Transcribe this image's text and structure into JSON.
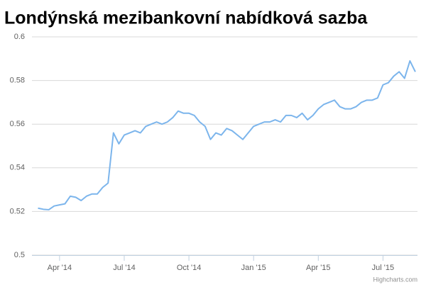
{
  "chart_data": {
    "type": "line",
    "title": "Londýnská mezibankovní nabídková sazba",
    "credits": "Highcharts.com",
    "x": [
      -1,
      -0.75,
      -0.5,
      -0.25,
      0,
      0.25,
      0.5,
      0.75,
      1,
      1.25,
      1.5,
      1.75,
      2,
      2.25,
      2.5,
      2.75,
      3,
      3.25,
      3.5,
      3.75,
      4,
      4.25,
      4.5,
      4.75,
      5,
      5.25,
      5.5,
      5.75,
      6,
      6.25,
      6.5,
      6.75,
      7,
      7.25,
      7.5,
      7.75,
      8,
      8.25,
      8.5,
      8.75,
      9,
      9.25,
      9.5,
      9.75,
      10,
      10.25,
      10.5,
      10.75,
      11,
      11.25,
      11.5,
      11.75,
      12,
      12.25,
      12.5,
      12.75,
      13,
      13.25,
      13.5,
      13.75,
      14,
      14.25,
      14.5,
      14.75,
      15,
      15.25,
      15.5,
      15.75,
      16,
      16.25,
      16.5
    ],
    "series": [
      {
        "color": "#7cb5ec",
        "values": [
          0.5215,
          0.521,
          0.5208,
          0.5225,
          0.523,
          0.5235,
          0.527,
          0.5265,
          0.525,
          0.527,
          0.528,
          0.528,
          0.531,
          0.533,
          0.556,
          0.551,
          0.555,
          0.556,
          0.557,
          0.556,
          0.559,
          0.56,
          0.561,
          0.56,
          0.561,
          0.563,
          0.566,
          0.565,
          0.565,
          0.564,
          0.561,
          0.559,
          0.553,
          0.556,
          0.555,
          0.558,
          0.557,
          0.555,
          0.553,
          0.556,
          0.559,
          0.56,
          0.561,
          0.561,
          0.562,
          0.561,
          0.564,
          0.564,
          0.563,
          0.565,
          0.562,
          0.564,
          0.567,
          0.569,
          0.57,
          0.571,
          0.568,
          0.567,
          0.567,
          0.568,
          0.57,
          0.571,
          0.571,
          0.572,
          0.578,
          0.579,
          0.582,
          0.584,
          0.581,
          0.589,
          0.584
        ]
      }
    ],
    "xlim": [
      -1.28,
      16.6
    ],
    "xticks": [
      {
        "value": 0,
        "label": "Apr '14"
      },
      {
        "value": 3,
        "label": "Jul '14"
      },
      {
        "value": 6,
        "label": "Oct '14"
      },
      {
        "value": 9,
        "label": "Jan '15"
      },
      {
        "value": 12,
        "label": "Apr '15"
      },
      {
        "value": 15,
        "label": "Jul '15"
      }
    ],
    "ylim": [
      0.5,
      0.6
    ],
    "yticks": [
      0.5,
      0.52,
      0.54,
      0.56,
      0.58,
      0.6
    ],
    "grid": true
  }
}
